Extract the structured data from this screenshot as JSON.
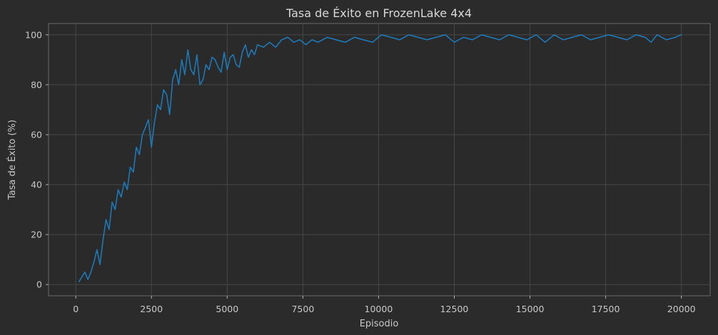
{
  "chart_data": {
    "type": "line",
    "title": "Tasa de Éxito en FrozenLake 4x4",
    "xlabel": "Episodio",
    "ylabel": "Tasa de Éxito (%)",
    "xlim": [
      -900,
      20950
    ],
    "ylim": [
      -4.5,
      104.5
    ],
    "xticks": [
      0,
      2500,
      5000,
      7500,
      10000,
      12500,
      15000,
      17500,
      20000
    ],
    "yticks": [
      0,
      20,
      40,
      60,
      80,
      100
    ],
    "grid": true,
    "legend": "none",
    "series": [
      {
        "color": "#1f77b4",
        "x": [
          100,
          200,
          300,
          400,
          500,
          600,
          700,
          800,
          900,
          1000,
          1100,
          1200,
          1300,
          1400,
          1500,
          1600,
          1700,
          1800,
          1900,
          2000,
          2100,
          2200,
          2300,
          2400,
          2500,
          2600,
          2700,
          2800,
          2900,
          3000,
          3100,
          3200,
          3300,
          3400,
          3500,
          3600,
          3700,
          3800,
          3900,
          4000,
          4100,
          4200,
          4300,
          4400,
          4500,
          4600,
          4700,
          4800,
          4900,
          5000,
          5100,
          5200,
          5300,
          5400,
          5500,
          5600,
          5700,
          5800,
          5900,
          6000,
          6200,
          6400,
          6600,
          6800,
          7000,
          7200,
          7400,
          7600,
          7800,
          8000,
          8300,
          8600,
          8900,
          9200,
          9500,
          9800,
          10100,
          10400,
          10700,
          11000,
          11300,
          11600,
          11900,
          12200,
          12500,
          12800,
          13100,
          13400,
          13700,
          14000,
          14300,
          14600,
          14900,
          15200,
          15500,
          15800,
          16100,
          16400,
          16700,
          17000,
          17300,
          17600,
          17900,
          18200,
          18500,
          18800,
          19000,
          19200,
          19500,
          19800,
          20000
        ],
        "y": [
          1,
          3,
          5,
          2,
          5,
          9,
          14,
          8,
          18,
          26,
          22,
          33,
          30,
          38,
          35,
          41,
          38,
          47,
          45,
          55,
          52,
          60,
          63,
          66,
          55,
          65,
          72,
          70,
          78,
          76,
          68,
          82,
          86,
          80,
          90,
          84,
          94,
          86,
          84,
          92,
          80,
          82,
          88,
          86,
          91,
          90,
          87,
          85,
          93,
          86,
          91,
          92,
          88,
          87,
          93,
          96,
          91,
          94,
          92,
          96,
          95,
          97,
          95,
          98,
          99,
          97,
          98,
          96,
          98,
          97,
          99,
          98,
          97,
          99,
          98,
          97,
          100,
          99,
          98,
          100,
          99,
          98,
          99,
          100,
          97,
          99,
          98,
          100,
          99,
          98,
          100,
          99,
          98,
          100,
          97,
          100,
          98,
          99,
          100,
          98,
          99,
          100,
          99,
          98,
          100,
          99,
          97,
          100,
          98,
          99,
          100
        ]
      }
    ]
  }
}
